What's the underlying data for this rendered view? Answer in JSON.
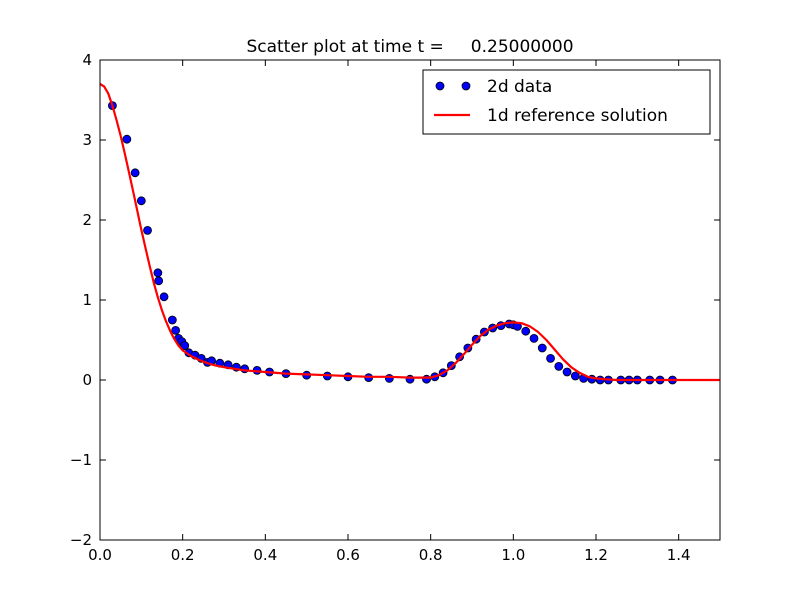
{
  "chart_data": {
    "type": "scatter",
    "title": "Scatter plot at time t =     0.25000000",
    "xlabel": "",
    "ylabel": "",
    "xlim": [
      0.0,
      1.5
    ],
    "ylim": [
      -2,
      4
    ],
    "x_ticks": [
      "0.0",
      "0.2",
      "0.4",
      "0.6",
      "0.8",
      "1.0",
      "1.2",
      "1.4"
    ],
    "y_ticks": [
      "−2",
      "−1",
      "0",
      "1",
      "2",
      "3",
      "4"
    ],
    "grid": false,
    "legend_position": "top-right",
    "series": [
      {
        "name": "2d data",
        "kind": "scatter",
        "color": "#0000ff",
        "edge_color": "#000000",
        "x": [
          0.03,
          0.065,
          0.085,
          0.1,
          0.115,
          0.14,
          0.142,
          0.155,
          0.175,
          0.183,
          0.19,
          0.198,
          0.205,
          0.215,
          0.23,
          0.245,
          0.26,
          0.27,
          0.29,
          0.31,
          0.33,
          0.35,
          0.38,
          0.41,
          0.45,
          0.5,
          0.55,
          0.6,
          0.65,
          0.7,
          0.75,
          0.79,
          0.81,
          0.83,
          0.85,
          0.87,
          0.89,
          0.91,
          0.93,
          0.95,
          0.97,
          0.99,
          1.0,
          1.01,
          1.03,
          1.05,
          1.07,
          1.09,
          1.11,
          1.13,
          1.15,
          1.17,
          1.19,
          1.21,
          1.23,
          1.26,
          1.28,
          1.3,
          1.33,
          1.355,
          1.385
        ],
        "y": [
          3.43,
          3.01,
          2.59,
          2.24,
          1.87,
          1.34,
          1.24,
          1.04,
          0.75,
          0.62,
          0.52,
          0.48,
          0.43,
          0.34,
          0.31,
          0.27,
          0.22,
          0.24,
          0.21,
          0.19,
          0.16,
          0.14,
          0.12,
          0.1,
          0.08,
          0.06,
          0.05,
          0.04,
          0.03,
          0.02,
          0.01,
          0.01,
          0.04,
          0.09,
          0.18,
          0.29,
          0.4,
          0.51,
          0.6,
          0.65,
          0.68,
          0.7,
          0.69,
          0.67,
          0.61,
          0.52,
          0.4,
          0.27,
          0.17,
          0.1,
          0.05,
          0.02,
          0.01,
          0.0,
          0.0,
          0.0,
          0.0,
          0.0,
          0.0,
          0.0,
          0.0
        ]
      },
      {
        "name": "1d reference solution",
        "kind": "line",
        "color": "#ff0000",
        "x": [
          0.0,
          0.01,
          0.02,
          0.03,
          0.04,
          0.05,
          0.06,
          0.07,
          0.08,
          0.09,
          0.1,
          0.11,
          0.12,
          0.13,
          0.14,
          0.15,
          0.16,
          0.17,
          0.18,
          0.19,
          0.2,
          0.22,
          0.24,
          0.26,
          0.28,
          0.3,
          0.35,
          0.4,
          0.45,
          0.5,
          0.55,
          0.6,
          0.65,
          0.7,
          0.75,
          0.78,
          0.8,
          0.82,
          0.84,
          0.86,
          0.88,
          0.9,
          0.92,
          0.94,
          0.96,
          0.98,
          1.0,
          1.02,
          1.04,
          1.06,
          1.08,
          1.1,
          1.12,
          1.14,
          1.16,
          1.18,
          1.2,
          1.22,
          1.25,
          1.3,
          1.4,
          1.5
        ],
        "y": [
          3.7,
          3.67,
          3.58,
          3.43,
          3.25,
          3.05,
          2.83,
          2.6,
          2.36,
          2.12,
          1.88,
          1.65,
          1.43,
          1.22,
          1.03,
          0.87,
          0.73,
          0.61,
          0.51,
          0.43,
          0.37,
          0.3,
          0.25,
          0.21,
          0.18,
          0.16,
          0.12,
          0.1,
          0.08,
          0.07,
          0.06,
          0.05,
          0.04,
          0.04,
          0.03,
          0.03,
          0.03,
          0.06,
          0.12,
          0.21,
          0.32,
          0.44,
          0.55,
          0.63,
          0.68,
          0.71,
          0.72,
          0.71,
          0.67,
          0.6,
          0.5,
          0.38,
          0.26,
          0.16,
          0.09,
          0.04,
          0.02,
          0.01,
          0.0,
          0.0,
          0.0,
          0.0
        ]
      }
    ]
  }
}
